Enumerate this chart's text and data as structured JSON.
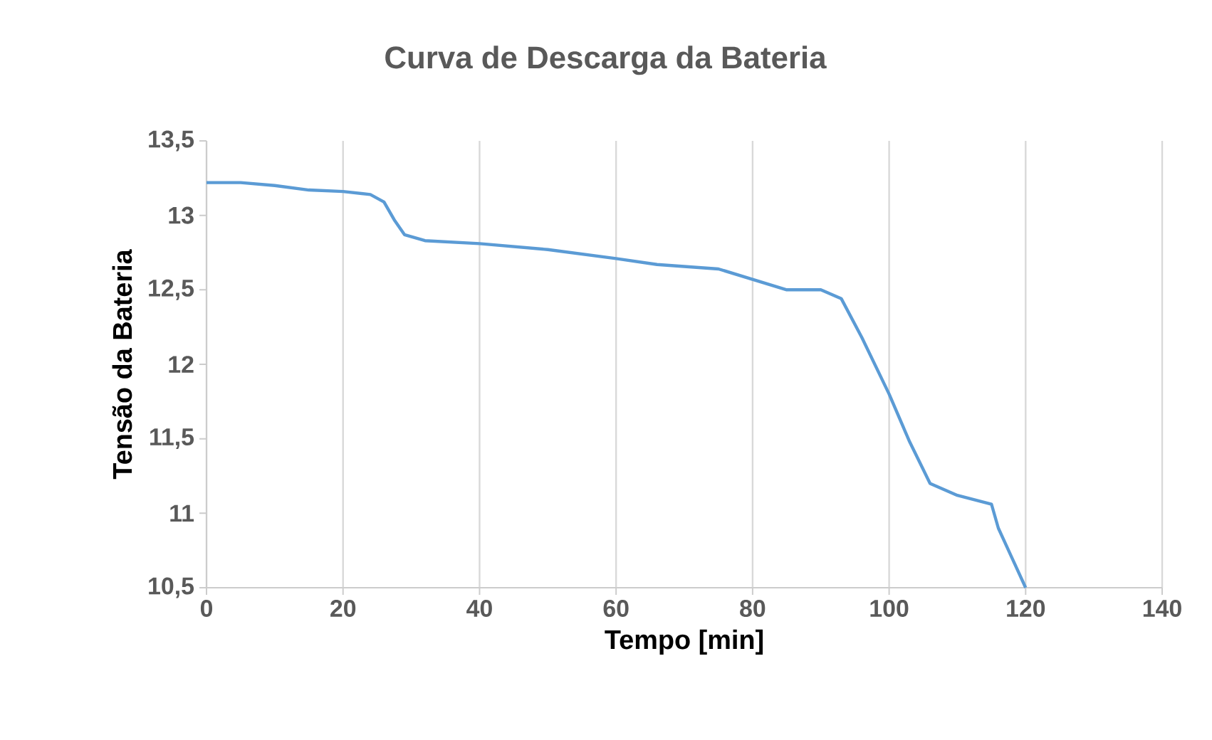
{
  "chart_data": {
    "type": "line",
    "title": "Curva de Descarga da Bateria",
    "xlabel": "Tempo [min]",
    "ylabel": "Tensão da Bateria",
    "x": [
      0,
      5,
      10,
      15,
      20,
      24,
      26,
      27.5,
      29,
      32,
      40,
      50,
      60,
      66,
      75,
      80,
      85,
      90,
      93,
      96,
      100,
      103,
      106,
      110,
      115,
      116,
      118,
      120
    ],
    "series": [
      {
        "color": "#5b9bd5",
        "values": [
          13.22,
          13.22,
          13.2,
          13.17,
          13.16,
          13.14,
          13.09,
          12.97,
          12.87,
          12.83,
          12.81,
          12.77,
          12.71,
          12.67,
          12.64,
          12.57,
          12.5,
          12.5,
          12.44,
          12.18,
          11.8,
          11.48,
          11.2,
          11.12,
          11.06,
          10.9,
          10.7,
          10.5
        ]
      }
    ],
    "xlim": [
      0,
      140
    ],
    "xticks": [
      0,
      20,
      40,
      60,
      80,
      100,
      120,
      140
    ],
    "ylim": [
      10.5,
      13.5
    ],
    "yticks": [
      {
        "value": 10.5,
        "label": "10,5"
      },
      {
        "value": 11,
        "label": "11"
      },
      {
        "value": 11.5,
        "label": "11,5"
      },
      {
        "value": 12,
        "label": "12"
      },
      {
        "value": 12.5,
        "label": "12,5"
      },
      {
        "value": 13,
        "label": "13"
      },
      {
        "value": 13.5,
        "label": "13,5"
      }
    ],
    "grid": "x",
    "marker": "none",
    "line_style": "solid"
  }
}
